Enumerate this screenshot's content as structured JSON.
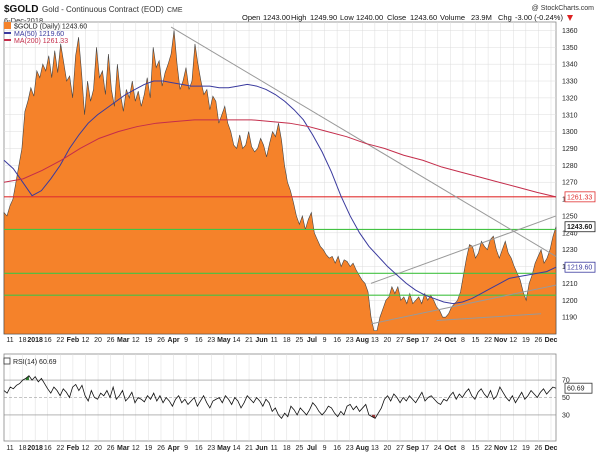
{
  "header": {
    "symbol": "$GOLD",
    "description": "Gold - Continuous Contract (EOD)",
    "exchange": "CME",
    "date": "6-Dec-2018",
    "credit": "@ StockCharts.com",
    "open_label": "Open",
    "open": "1243.00",
    "high_label": "High",
    "high": "1249.90",
    "low_label": "Low",
    "low": "1240.00",
    "close_label": "Close",
    "close": "1243.60",
    "volume_label": "Volume",
    "volume": "23.9M",
    "chg_label": "Chg",
    "chg": "-3.00 (-0.24%)"
  },
  "legend": {
    "price": "$GOLD (Daily) 1243.60",
    "ma50": "MA(50) 1219.60",
    "ma200": "MA(200) 1261.33",
    "rsi": "RSI(14) 60.69"
  },
  "colors": {
    "area": "#f5822a",
    "area_stroke": "#444444",
    "ma50": "#3a3a9e",
    "ma200": "#c42d4b",
    "red_line": "#e03030",
    "green_line": "#44c244",
    "trend_line": "#999999",
    "rsi_line": "#111111",
    "rsi_fill_over": "#2e7d2e",
    "rsi_fill_under": "#9a3a3a",
    "grid": "#dcdcdc"
  },
  "chart_data": [
    {
      "type": "area",
      "title": "$GOLD (Daily) 1243.60",
      "ylim": [
        1180,
        1365
      ],
      "y_ticks": [
        1190,
        1200,
        1210,
        1220,
        1230,
        1240,
        1250,
        1260,
        1270,
        1280,
        1290,
        1300,
        1310,
        1320,
        1330,
        1340,
        1350,
        1360
      ],
      "x_tick_labels": [
        "11",
        "18",
        "2018",
        "16",
        "22",
        "Feb",
        "12",
        "20",
        "26",
        "Mar",
        "12",
        "19",
        "26",
        "Apr",
        "9",
        "16",
        "23",
        "May",
        "14",
        "21",
        "Jun",
        "11",
        "18",
        "25",
        "Jul",
        "9",
        "16",
        "23",
        "Aug",
        "13",
        "20",
        "27",
        "Sep",
        "17",
        "24",
        "Oct",
        "8",
        "15",
        "22",
        "Nov",
        "12",
        "19",
        "26",
        "Dec"
      ],
      "series": [
        {
          "name": "$GOLD (Daily) 1243.60",
          "values": [
            1252,
            1250,
            1256,
            1260,
            1270,
            1280,
            1290,
            1312,
            1318,
            1326,
            1321,
            1336,
            1332,
            1340,
            1336,
            1345,
            1332,
            1348,
            1335,
            1352,
            1341,
            1330,
            1333,
            1320,
            1345,
            1356,
            1335,
            1310,
            1330,
            1318,
            1325,
            1350,
            1332,
            1336,
            1322,
            1346,
            1325,
            1315,
            1340,
            1323,
            1312,
            1325,
            1320,
            1330,
            1318,
            1324,
            1315,
            1322,
            1332,
            1320,
            1350,
            1338,
            1342,
            1327,
            1335,
            1340,
            1346,
            1360,
            1340,
            1325,
            1330,
            1338,
            1325,
            1330,
            1352,
            1340,
            1330,
            1322,
            1325,
            1313,
            1321,
            1318,
            1305,
            1310,
            1315,
            1305,
            1300,
            1292,
            1290,
            1298,
            1290,
            1292,
            1300,
            1291,
            1288,
            1290,
            1296,
            1292,
            1285,
            1293,
            1300,
            1297,
            1305,
            1295,
            1280,
            1270,
            1265,
            1258,
            1250,
            1245,
            1250,
            1242,
            1248,
            1252,
            1240,
            1236,
            1232,
            1230,
            1227,
            1225,
            1226,
            1222,
            1226,
            1220,
            1224,
            1223,
            1220,
            1222,
            1218,
            1215,
            1212,
            1210,
            1205,
            1190,
            1182,
            1182,
            1190,
            1195,
            1200,
            1202,
            1208,
            1204,
            1208,
            1200,
            1202,
            1198,
            1204,
            1198,
            1200,
            1202,
            1198,
            1204,
            1200,
            1203,
            1200,
            1196,
            1194,
            1190,
            1190,
            1192,
            1196,
            1198,
            1200,
            1205,
            1215,
            1225,
            1233,
            1232,
            1225,
            1228,
            1235,
            1232,
            1230,
            1236,
            1238,
            1230,
            1225,
            1230,
            1235,
            1228,
            1225,
            1220,
            1216,
            1212,
            1205,
            1200,
            1210,
            1215,
            1222,
            1226,
            1230,
            1222,
            1225,
            1230,
            1238,
            1243.6
          ]
        },
        {
          "name": "MA(50) 1219.60",
          "values": [
            1283,
            1278,
            1270,
            1262,
            1265,
            1272,
            1280,
            1290,
            1298,
            1305,
            1310,
            1314,
            1318,
            1322,
            1325,
            1328,
            1330,
            1330,
            1329,
            1328,
            1327,
            1327,
            1327,
            1326,
            1326,
            1327,
            1328,
            1327,
            1325,
            1322,
            1318,
            1313,
            1307,
            1298,
            1288,
            1276,
            1262,
            1250,
            1240,
            1232,
            1226,
            1220,
            1215,
            1210,
            1206,
            1203,
            1201,
            1199,
            1198,
            1199,
            1201,
            1204,
            1207,
            1210,
            1213,
            1214,
            1215,
            1216,
            1217,
            1219.6
          ]
        },
        {
          "name": "MA(200) 1261.33",
          "values": [
            1270,
            1272,
            1277,
            1283,
            1290,
            1296,
            1300,
            1303,
            1305,
            1306,
            1307,
            1307,
            1307,
            1307,
            1306,
            1305,
            1303,
            1300,
            1297,
            1293,
            1290,
            1286,
            1283,
            1279,
            1276,
            1273,
            1270,
            1267,
            1264,
            1261.33
          ]
        }
      ],
      "horizontal_lines": [
        {
          "kind": "red",
          "value": 1261.33
        },
        {
          "kind": "green",
          "value": 1242
        },
        {
          "kind": "green",
          "value": 1216
        },
        {
          "kind": "green",
          "value": 1203
        }
      ],
      "last_value_labels": [
        {
          "text": "1261.33",
          "value": 1261.33,
          "kind": "ma200"
        },
        {
          "text": "1243.60",
          "value": 1243.6,
          "kind": "price"
        },
        {
          "text": "1219.60",
          "value": 1219.6,
          "kind": "ma50"
        }
      ]
    },
    {
      "type": "line",
      "title": "RSI(14) 60.69",
      "ylim": [
        0,
        100
      ],
      "y_ticks": [
        10,
        30,
        50,
        70,
        90
      ],
      "y_tick_labels": [
        "30",
        "50",
        "70"
      ],
      "reference_lines": [
        30,
        50,
        70
      ],
      "last_value_label": "60.69",
      "x_tick_labels": [
        "11",
        "18",
        "2018",
        "16",
        "22",
        "Feb",
        "12",
        "20",
        "26",
        "Mar",
        "12",
        "19",
        "26",
        "Apr",
        "9",
        "16",
        "23",
        "May",
        "14",
        "21",
        "Jun",
        "11",
        "18",
        "25",
        "Jul",
        "9",
        "16",
        "23",
        "Aug",
        "13",
        "20",
        "27",
        "Sep",
        "17",
        "24",
        "Oct",
        "8",
        "15",
        "22",
        "Nov",
        "12",
        "19",
        "26",
        "Dec"
      ],
      "series": [
        {
          "name": "RSI(14) 60.69",
          "values": [
            58,
            55,
            62,
            60,
            64,
            66,
            70,
            72,
            75,
            70,
            74,
            68,
            72,
            66,
            60,
            55,
            62,
            58,
            52,
            60,
            56,
            50,
            62,
            65,
            58,
            64,
            52,
            46,
            58,
            50,
            48,
            55,
            52,
            58,
            50,
            62,
            48,
            52,
            58,
            46,
            50,
            56,
            44,
            50,
            48,
            45,
            52,
            48,
            55,
            46,
            52,
            44,
            50,
            46,
            40,
            48,
            52,
            44,
            48,
            42,
            46,
            50,
            40,
            46,
            52,
            44,
            38,
            46,
            48,
            50,
            44,
            52,
            48,
            42,
            50,
            46,
            38,
            44,
            52,
            48,
            44,
            50,
            46,
            40,
            48,
            44,
            34,
            38,
            30,
            26,
            32,
            28,
            40,
            36,
            30,
            38,
            34,
            30,
            36,
            44,
            40,
            34,
            30,
            34,
            40,
            38,
            32,
            28,
            34,
            30,
            40,
            42,
            36,
            40,
            34,
            38,
            42,
            30,
            28,
            26,
            32,
            38,
            48,
            52,
            46,
            54,
            50,
            44,
            50,
            46,
            52,
            48,
            44,
            50,
            56,
            46,
            50,
            52,
            48,
            44,
            42,
            48,
            46,
            52,
            56,
            48,
            54,
            50,
            56,
            60,
            52,
            48,
            56,
            60,
            54,
            50,
            58,
            48,
            52,
            62,
            56,
            50,
            46,
            52,
            44,
            50,
            56,
            48,
            52,
            58,
            54,
            50,
            56,
            60,
            54,
            58,
            62,
            60.69
          ]
        }
      ]
    }
  ]
}
